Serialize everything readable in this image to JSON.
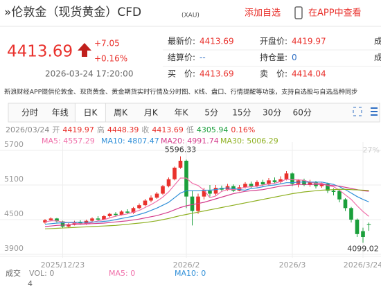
{
  "header": {
    "title": "»伦敦金（现货黄金）CFD",
    "code": "(XAU)",
    "add_watch": "添加自选",
    "open_app": "在APP中查看"
  },
  "quote": {
    "price": "4413.69",
    "change": "+7.05",
    "change_pct": "+0.16%",
    "time": "2026-03-24 17:20:00",
    "rows": [
      [
        {
          "label": "最新价:",
          "value": "4413.69",
          "color": "#e9312c"
        },
        {
          "label": "开盘价:",
          "value": "4419.97",
          "color": "#e9312c"
        },
        {
          "label": "成"
        }
      ],
      [
        {
          "label": "结算价:",
          "value": "--",
          "color": "#2f6fc4"
        },
        {
          "label": "持仓量:",
          "value": "0",
          "color": "#2f6fc4"
        },
        {
          "label": "成"
        }
      ],
      [
        {
          "label": "买　价:",
          "value": "4413.69",
          "color": "#e9312c"
        },
        {
          "label": "卖　价:",
          "value": "4414.04",
          "color": "#e9312c"
        }
      ]
    ]
  },
  "description": "新浪财经APP提供伦敦金、现货黄金、黄金期货实时行情及分时图、K线、盘口、行情提醒等功能，支持自选股与自选品种同步",
  "tabs": [
    "分时",
    "年线",
    "日K",
    "周K",
    "月K",
    "年K",
    "5分",
    "15分",
    "30分",
    "60分"
  ],
  "active_tab": 2,
  "chart_data": {
    "type": "candlestick",
    "summary": [
      {
        "text": "2026/03/24",
        "color": "#888"
      },
      {
        "text": "开",
        "color": "#999"
      },
      {
        "text": "4419.97",
        "color": "#e9312c"
      },
      {
        "text": "高",
        "color": "#999"
      },
      {
        "text": "4448.39",
        "color": "#e9312c"
      },
      {
        "text": "收",
        "color": "#999"
      },
      {
        "text": "4413.69",
        "color": "#e9312c"
      },
      {
        "text": "低",
        "color": "#999"
      },
      {
        "text": "4305.94",
        "color": "#1a9f3b"
      },
      {
        "text": "0.16%",
        "color": "#e9312c"
      }
    ],
    "categories": [
      null,
      null,
      null,
      "2025/12/23",
      null,
      null,
      null,
      null,
      null,
      null,
      null,
      null,
      null,
      null,
      null,
      null,
      null,
      null,
      null,
      null,
      null,
      null,
      null,
      null,
      "2026/2",
      null,
      null,
      null,
      null,
      null,
      null,
      null,
      null,
      null,
      null,
      null,
      null,
      null,
      null,
      null,
      null,
      null,
      "2026/3",
      null,
      null,
      null,
      null,
      null,
      null,
      null,
      null,
      null,
      null,
      null,
      "2026/3/24",
      null
    ],
    "open": [
      4450,
      4490,
      4520,
      4470,
      4380,
      4420,
      4460,
      4430,
      4480,
      4520,
      4500,
      4560,
      4600,
      4580,
      4640,
      4620,
      4700,
      4750,
      4830,
      4880,
      4950,
      5080,
      5200,
      5400,
      5520,
      4900,
      4650,
      4900,
      5000,
      4950,
      5050,
      5020,
      5080,
      5000,
      5060,
      5120,
      5080,
      5150,
      5110,
      5180,
      5150,
      5200,
      5300,
      5120,
      5180,
      5100,
      5150,
      5080,
      5120,
      5000,
      5000,
      4850,
      4700,
      4500,
      4300,
      4419.97
    ],
    "high": [
      4510,
      4540,
      4530,
      4480,
      4440,
      4480,
      4490,
      4500,
      4540,
      4560,
      4580,
      4620,
      4630,
      4660,
      4680,
      4720,
      4780,
      4860,
      4920,
      4980,
      5100,
      5230,
      5420,
      5596.33,
      5540,
      5000,
      4950,
      5050,
      5100,
      5100,
      5090,
      5120,
      5110,
      5100,
      5150,
      5160,
      5180,
      5190,
      5220,
      5230,
      5250,
      5340,
      5320,
      5200,
      5210,
      5190,
      5170,
      5140,
      5140,
      5040,
      5020,
      4870,
      4720,
      4520,
      4360,
      4448.39
    ],
    "low": [
      4430,
      4470,
      4450,
      4350,
      4360,
      4400,
      4410,
      4410,
      4460,
      4480,
      4490,
      4540,
      4550,
      4570,
      4600,
      4600,
      4680,
      4730,
      4800,
      4860,
      4930,
      5060,
      5180,
      5380,
      4700,
      4400,
      4600,
      4850,
      4900,
      4920,
      4980,
      5000,
      4980,
      4990,
      5040,
      5050,
      5060,
      5080,
      5090,
      5120,
      5130,
      5180,
      5080,
      5060,
      5080,
      5070,
      5040,
      5050,
      4960,
      4920,
      4800,
      4650,
      4450,
      4200,
      4099.02,
      4305.94
    ],
    "close": [
      4490,
      4520,
      4470,
      4380,
      4420,
      4460,
      4430,
      4480,
      4520,
      4500,
      4560,
      4600,
      4580,
      4640,
      4620,
      4700,
      4750,
      4830,
      4880,
      4950,
      5080,
      5200,
      5400,
      5520,
      4900,
      4650,
      4900,
      5000,
      4950,
      5050,
      5020,
      5080,
      5000,
      5060,
      5120,
      5080,
      5150,
      5110,
      5180,
      5150,
      5200,
      5300,
      5120,
      5180,
      5100,
      5150,
      5080,
      5120,
      5000,
      4980,
      4850,
      4700,
      4500,
      4250,
      4200,
      4413.69
    ],
    "up_color": "#e9312c",
    "down_color": "#1a9f3b",
    "series": [
      {
        "name": "MA5: 4557.29",
        "color": "#f06ea9",
        "values": [
          4460,
          4480,
          4480,
          4460,
          4450,
          4440,
          4430,
          4430,
          4450,
          4480,
          4500,
          4530,
          4560,
          4580,
          4600,
          4630,
          4660,
          4710,
          4760,
          4820,
          4890,
          4980,
          5100,
          5220,
          5220,
          5130,
          5090,
          5010,
          4880,
          4910,
          4990,
          5020,
          5020,
          5040,
          5060,
          5070,
          5080,
          5100,
          5120,
          5130,
          5160,
          5200,
          5190,
          5190,
          5180,
          5150,
          5130,
          5130,
          5090,
          5070,
          5010,
          4930,
          4850,
          4740,
          4640,
          4557.29
        ]
      },
      {
        "name": "MA10: 4807.47",
        "color": "#2f8fd8",
        "values": [
          4420,
          4430,
          4440,
          4445,
          4450,
          4455,
          4455,
          4455,
          4460,
          4460,
          4470,
          4480,
          4500,
          4520,
          4540,
          4560,
          4590,
          4620,
          4660,
          4700,
          4750,
          4800,
          4880,
          4960,
          5000,
          5000,
          5000,
          5010,
          5010,
          5020,
          5040,
          5050,
          5040,
          5020,
          5010,
          5040,
          5050,
          5070,
          5090,
          5100,
          5120,
          5140,
          5140,
          5150,
          5150,
          5150,
          5150,
          5150,
          5130,
          5110,
          5070,
          5020,
          4960,
          4900,
          4850,
          4807.47
        ]
      },
      {
        "name": "MA20: 4991.74",
        "color": "#d43c8c",
        "values": [
          4380,
          4390,
          4400,
          4405,
          4410,
          4415,
          4420,
          4425,
          4430,
          4435,
          4440,
          4450,
          4460,
          4470,
          4480,
          4495,
          4510,
          4530,
          4550,
          4570,
          4600,
          4630,
          4670,
          4710,
          4740,
          4760,
          4780,
          4800,
          4830,
          4860,
          4890,
          4920,
          4950,
          4970,
          4990,
          5000,
          5010,
          5020,
          5040,
          5060,
          5080,
          5090,
          5100,
          5110,
          5110,
          5110,
          5110,
          5110,
          5100,
          5090,
          5080,
          5060,
          5040,
          5020,
          5000,
          4991.74
        ]
      },
      {
        "name": "MA30: 5006.29",
        "color": "#8eb021",
        "values": [
          4340,
          4345,
          4350,
          4355,
          4360,
          4365,
          4370,
          4375,
          4380,
          4385,
          4390,
          4395,
          4400,
          4410,
          4420,
          4430,
          4440,
          4450,
          4465,
          4480,
          4500,
          4520,
          4545,
          4570,
          4590,
          4610,
          4630,
          4650,
          4670,
          4690,
          4710,
          4730,
          4750,
          4770,
          4790,
          4810,
          4830,
          4850,
          4870,
          4890,
          4910,
          4930,
          4950,
          4965,
          4980,
          4990,
          5000,
          5010,
          5015,
          5020,
          5025,
          5025,
          5020,
          5015,
          5010,
          5006.29
        ]
      }
    ],
    "ylim": [
      3840,
      5844
    ],
    "yticks": [
      3900,
      4500,
      5100,
      5700
    ],
    "grid": true,
    "annotations": [
      {
        "text": "5596.33",
        "at": "max"
      },
      {
        "text": "4099.02",
        "at": "min"
      }
    ],
    "right_label": "27%",
    "volume": {
      "title": "成交",
      "legend": [
        {
          "text": "VOL: 0",
          "color": "#888"
        },
        {
          "text": "MA5: 0",
          "color": "#f06ea9"
        },
        {
          "text": "MA10: 0",
          "color": "#2f8fd8"
        }
      ],
      "tick": "4"
    }
  }
}
